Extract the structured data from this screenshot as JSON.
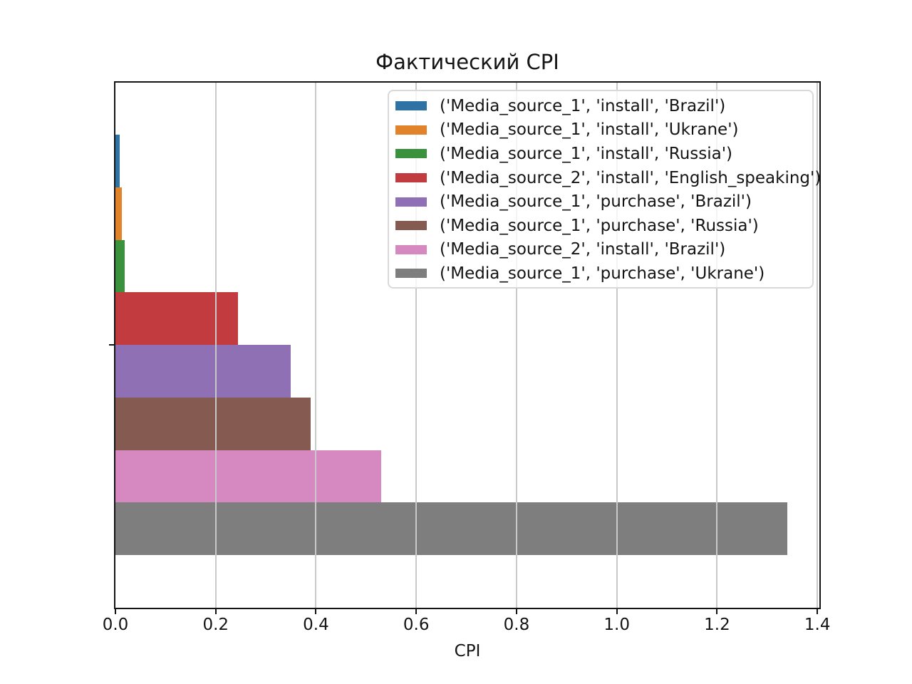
{
  "chart_data": {
    "type": "bar",
    "orientation": "horizontal",
    "title": "Фактический CPI",
    "xlabel": "CPI",
    "xlim": [
      0,
      1.404
    ],
    "xticks": [
      0.0,
      0.2,
      0.4,
      0.6,
      0.8,
      1.0,
      1.2,
      1.4
    ],
    "xtick_labels": [
      "0.0",
      "0.2",
      "0.4",
      "0.6",
      "0.8",
      "1.0",
      "1.2",
      "1.4"
    ],
    "grid": true,
    "grid_color": "#c9c9c9",
    "axis_color": "#141414",
    "legend_position": "upper right",
    "bars": [
      {
        "label": "('Media_source_1', 'install', 'Brazil')",
        "value": 0.008,
        "color": "#2e73a4"
      },
      {
        "label": "('Media_source_1', 'install', 'Ukrane')",
        "value": 0.013,
        "color": "#e0832b"
      },
      {
        "label": "('Media_source_1', 'install', 'Russia')",
        "value": 0.019,
        "color": "#3a923c"
      },
      {
        "label": "('Media_source_2', 'install', 'English_speaking')",
        "value": 0.245,
        "color": "#c23b3e"
      },
      {
        "label": "('Media_source_1', 'purchase', 'Brazil')",
        "value": 0.35,
        "color": "#8f70b4"
      },
      {
        "label": "('Media_source_1', 'purchase', 'Russia')",
        "value": 0.39,
        "color": "#855a50"
      },
      {
        "label": "('Media_source_2', 'install', 'Brazil')",
        "value": 0.53,
        "color": "#d688c1"
      },
      {
        "label": "('Media_source_1', 'purchase', 'Ukrane')",
        "value": 1.34,
        "color": "#7e7e7e"
      }
    ]
  }
}
